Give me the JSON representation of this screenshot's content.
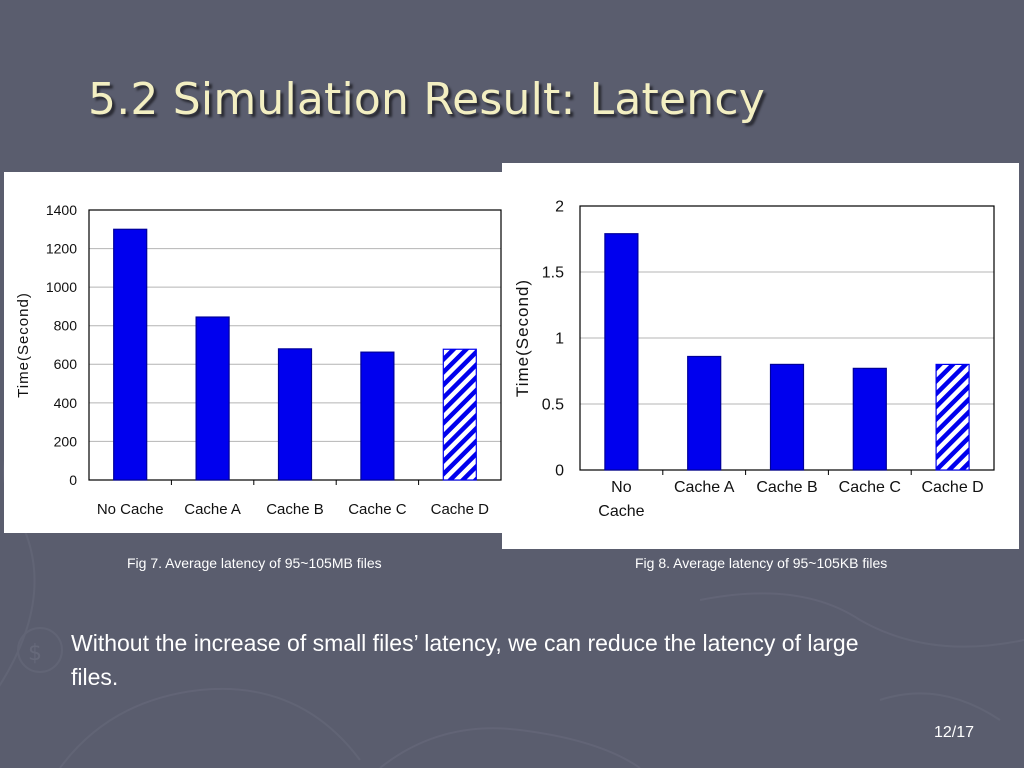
{
  "slide": {
    "title": "5.2 Simulation Result: Latency",
    "body": "Without the increase of small files’ latency, we can reduce the latency of large files.",
    "page_number": "12/17"
  },
  "colors": {
    "background": "#5a5d6e",
    "title": "#f3efc2",
    "bar": "#0000ee",
    "hatch": "#0000ee"
  },
  "chart_data": [
    {
      "type": "bar",
      "caption": "Fig 7. Average latency of 95~105MB files",
      "categories": [
        "No Cache",
        "Cache A",
        "Cache B",
        "Cache C",
        "Cache D"
      ],
      "values": [
        1300,
        845,
        680,
        663,
        678
      ],
      "hatched_category": "Cache D",
      "ylabel": "Time(Second)",
      "ylim": [
        0,
        1400
      ],
      "yticks": [
        "0",
        "200",
        "400",
        "600",
        "800",
        "1000",
        "1200",
        "1400"
      ],
      "grid": true
    },
    {
      "type": "bar",
      "caption": "Fig 8. Average latency of 95~105KB files",
      "categories": [
        "No Cache",
        "Cache A",
        "Cache B",
        "Cache C",
        "Cache D"
      ],
      "values": [
        1.79,
        0.86,
        0.8,
        0.77,
        0.8
      ],
      "hatched_category": "Cache D",
      "ylabel": "Time(Second)",
      "ylim": [
        0,
        2
      ],
      "yticks": [
        "0",
        "0.5",
        "1",
        "1.5",
        "2"
      ],
      "grid": true
    }
  ]
}
